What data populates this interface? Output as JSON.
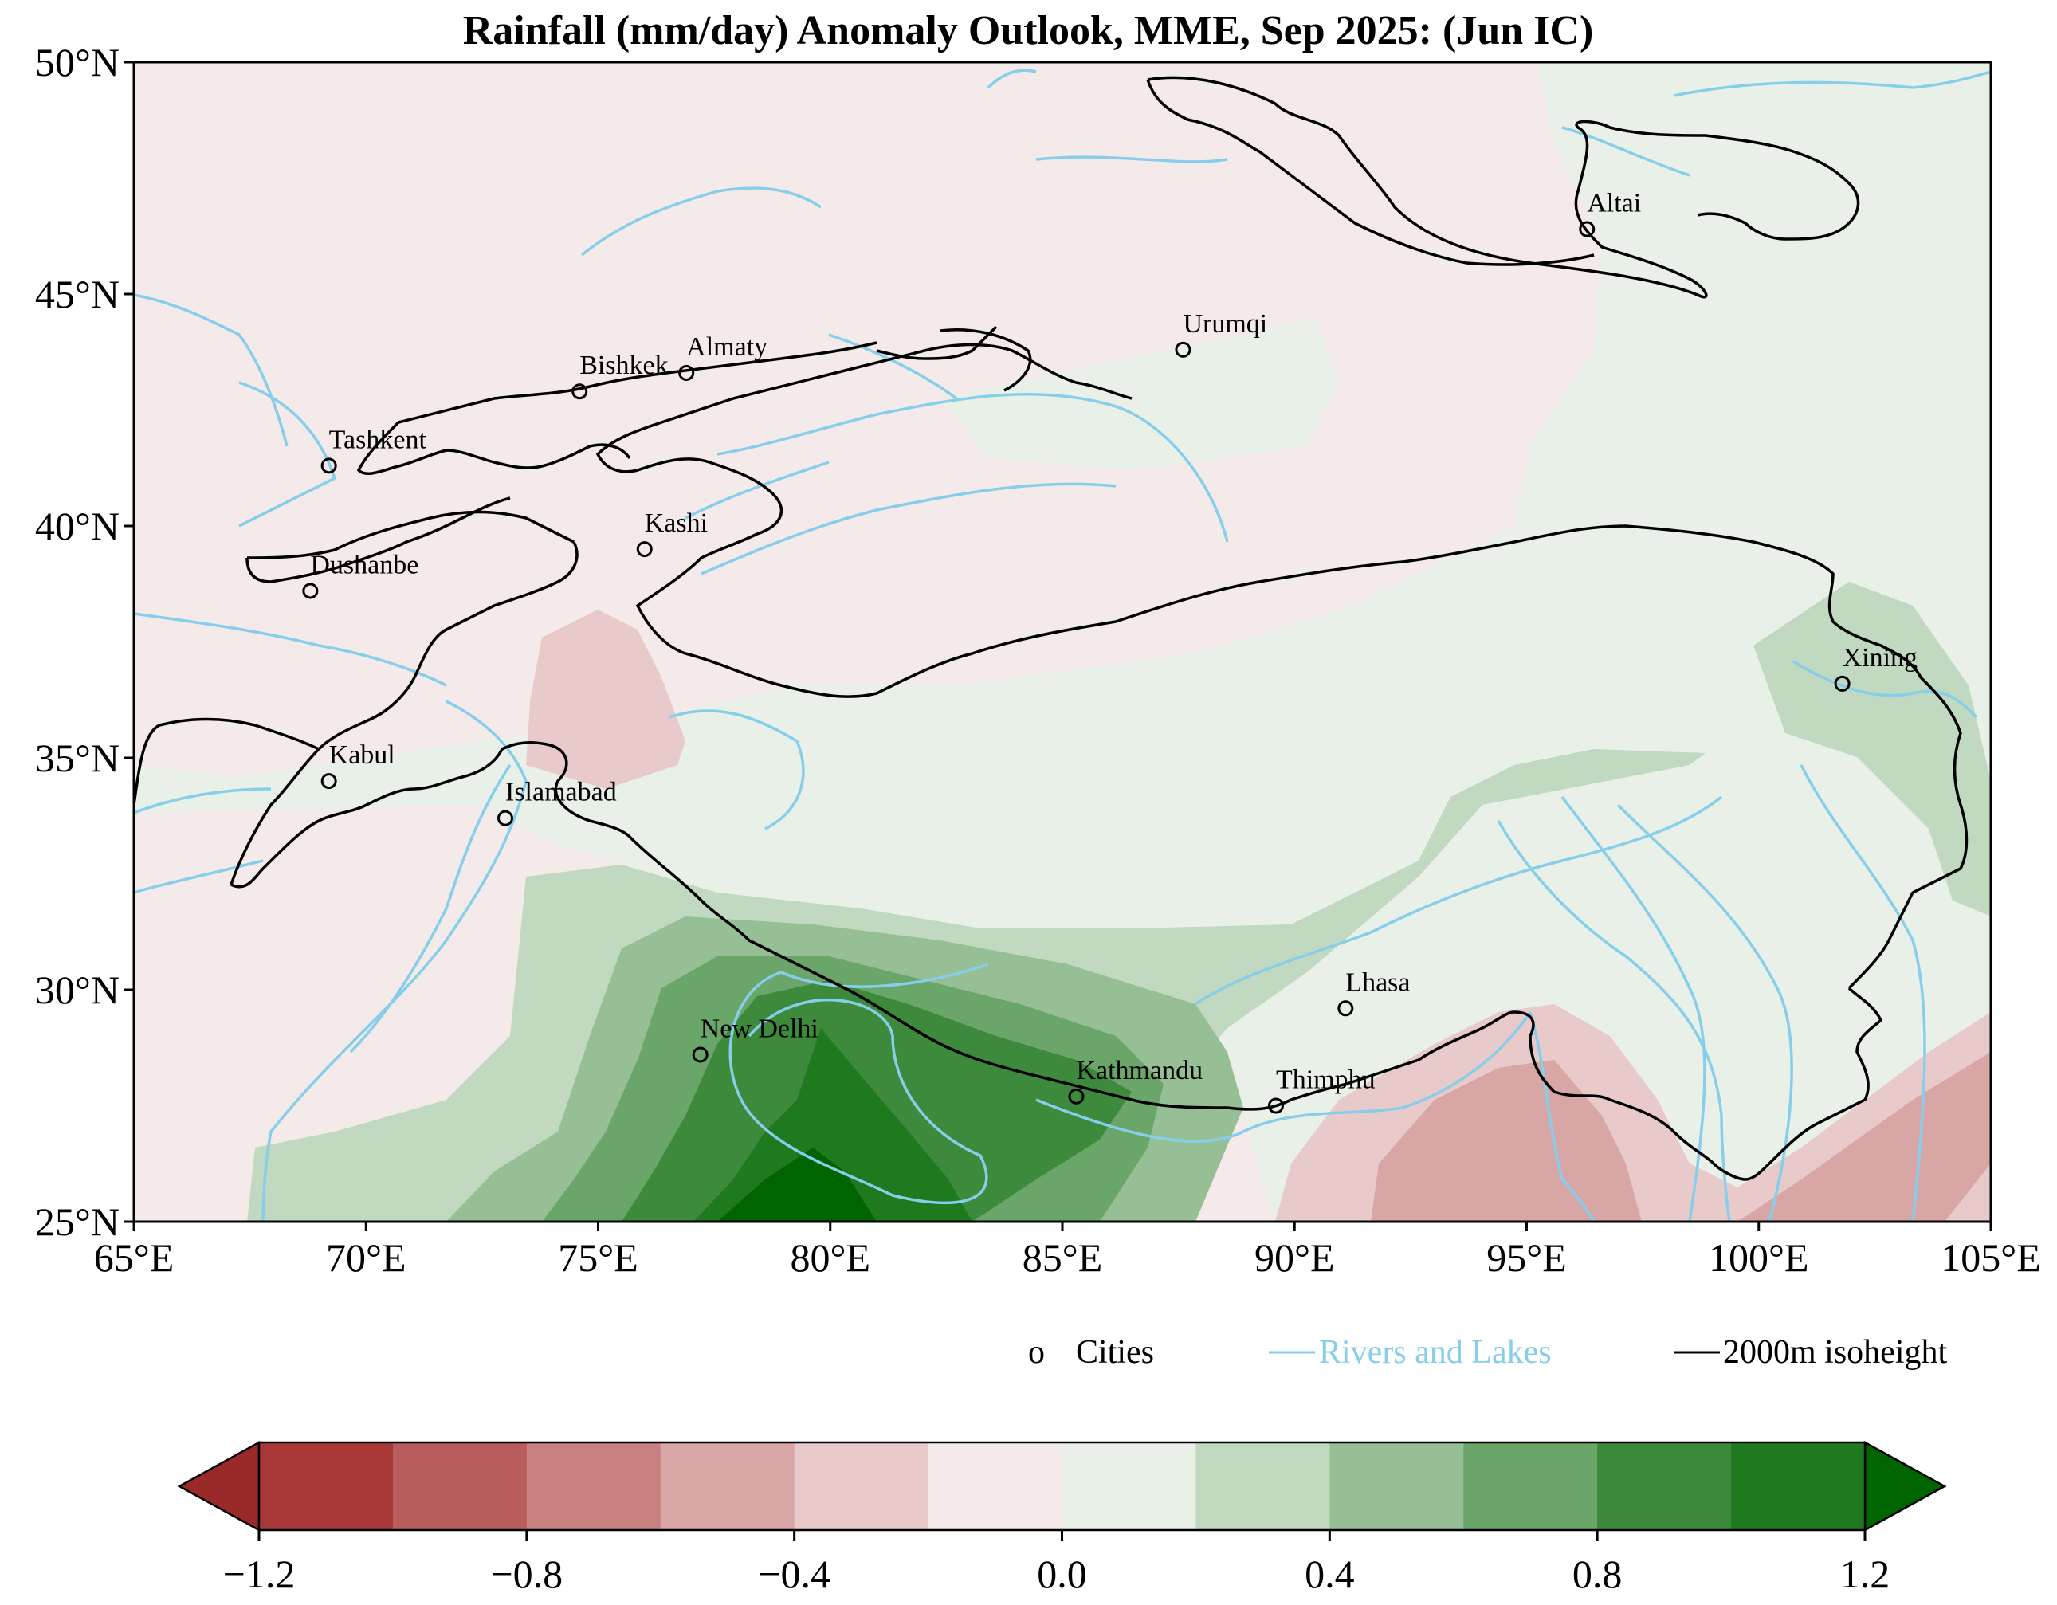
{
  "title": "Rainfall (mm/day) Anomaly Outlook, MME, Sep  2025:  (Jun IC)",
  "map": {
    "lon_range": [
      65,
      105
    ],
    "lat_range": [
      25,
      50
    ],
    "x_ticks": [
      "65°E",
      "70°E",
      "75°E",
      "80°E",
      "85°E",
      "90°E",
      "95°E",
      "100°E",
      "105°E"
    ],
    "y_ticks": [
      "25°N",
      "30°N",
      "35°N",
      "40°N",
      "45°N",
      "50°N"
    ],
    "river_color": "#87ceeb",
    "isoheight_color": "#000000"
  },
  "cities": [
    {
      "name": "Altai",
      "lon": 96.3,
      "lat": 46.4
    },
    {
      "name": "Urumqi",
      "lon": 87.6,
      "lat": 43.8
    },
    {
      "name": "Almaty",
      "lon": 76.9,
      "lat": 43.3
    },
    {
      "name": "Bishkek",
      "lon": 74.6,
      "lat": 42.9
    },
    {
      "name": "Tashkent",
      "lon": 69.2,
      "lat": 41.3
    },
    {
      "name": "Kashi",
      "lon": 76.0,
      "lat": 39.5
    },
    {
      "name": "Dushanbe",
      "lon": 68.8,
      "lat": 38.6
    },
    {
      "name": "Xining",
      "lon": 101.8,
      "lat": 36.6
    },
    {
      "name": "Kabul",
      "lon": 69.2,
      "lat": 34.5
    },
    {
      "name": "Islamabad",
      "lon": 73.0,
      "lat": 33.7
    },
    {
      "name": "Lhasa",
      "lon": 91.1,
      "lat": 29.6
    },
    {
      "name": "New Delhi",
      "lon": 77.2,
      "lat": 28.6
    },
    {
      "name": "Kathmandu",
      "lon": 85.3,
      "lat": 27.7
    },
    {
      "name": "Thimphu",
      "lon": 89.6,
      "lat": 27.5
    }
  ],
  "legend": {
    "cities_marker": "o",
    "cities_label": "Cities",
    "rivers_label": "Rivers and Lakes",
    "isoheight_label": "2000m isoheight"
  },
  "colorbar": {
    "levels": [
      -1.2,
      -1.0,
      -0.8,
      -0.6,
      -0.4,
      -0.2,
      0.0,
      0.2,
      0.4,
      0.6,
      0.8,
      1.0,
      1.2
    ],
    "tick_labels": [
      "−1.2",
      "−0.8",
      "−0.4",
      "0.0",
      "0.4",
      "0.8",
      "1.2"
    ],
    "colors": [
      "#a83838",
      "#b85c5c",
      "#c98080",
      "#d9a6a6",
      "#e8caca",
      "#f5eaea",
      "#e8f0e8",
      "#c0d9c0",
      "#96bf96",
      "#6aa66a",
      "#3d8a3d",
      "#1f7a1f"
    ],
    "under_color": "#9a2a2a",
    "over_color": "#006400"
  }
}
